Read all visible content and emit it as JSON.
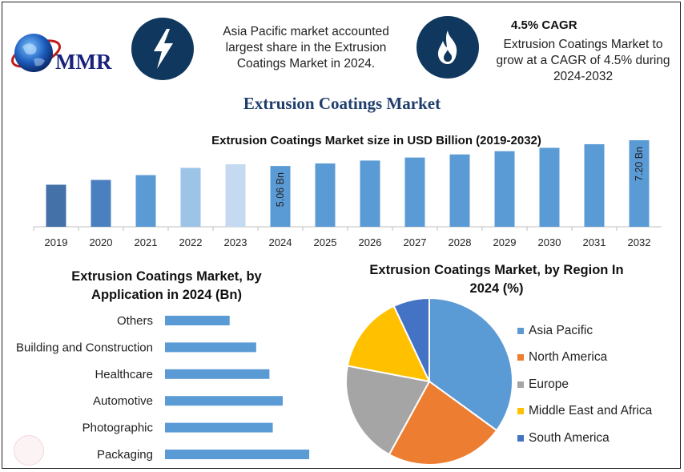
{
  "brand": {
    "name": "MMR"
  },
  "info_left": {
    "text": "Asia Pacific market accounted largest share in the Extrusion Coatings Market in 2024.",
    "icon": "lightning-bolt-icon"
  },
  "info_right": {
    "headline": "4.5% CAGR",
    "text": "Extrusion Coatings Market to grow at a CAGR of 4.5% during 2024-2032",
    "icon": "flame-icon"
  },
  "main_title": "Extrusion Coatings Market",
  "colors": {
    "title": "#1f3e6b",
    "badge": "#10385e",
    "bar": "#5b9bd5",
    "bar_2019": "#4472a8",
    "bar_2020": "#4a80bf",
    "bar_2022": "#9dc3e6",
    "bar_2023": "#c5daf0"
  },
  "chart_data": [
    {
      "type": "bar",
      "title": "Extrusion Coatings Market size in USD Billion (2019-2032)",
      "categories": [
        "2019",
        "2020",
        "2021",
        "2022",
        "2023",
        "2024",
        "2025",
        "2026",
        "2027",
        "2028",
        "2029",
        "2030",
        "2031",
        "2032"
      ],
      "values": [
        3.5,
        3.9,
        4.3,
        4.9,
        5.2,
        5.06,
        5.27,
        5.51,
        5.76,
        6.02,
        6.29,
        6.57,
        6.87,
        7.2
      ],
      "data_labels": [
        {
          "category": "2024",
          "text": "5.06 Bn"
        },
        {
          "category": "2032",
          "text": "7.20 Bn"
        }
      ],
      "ylim": [
        0,
        7.2
      ],
      "grid": false
    },
    {
      "type": "bar",
      "orientation": "horizontal",
      "title": "Extrusion Coatings Market, by Application in 2024 (Bn)",
      "categories": [
        "Others",
        "Building and Construction",
        "Healthcare",
        "Automotive",
        "Photographic",
        "Packaging"
      ],
      "values": [
        0.39,
        0.55,
        0.63,
        0.71,
        0.65,
        0.87
      ],
      "xlim": [
        0,
        1.0
      ]
    },
    {
      "type": "pie",
      "title": "Extrusion Coatings Market, by Region In 2024 (%)",
      "labels": [
        "Asia Pacific",
        "North America",
        "Europe",
        "Middle East and Africa",
        "South America"
      ],
      "values": [
        35,
        23,
        20,
        15,
        7
      ],
      "colors": [
        "#5b9bd5",
        "#ed7d31",
        "#a5a5a5",
        "#ffc000",
        "#4472c4"
      ],
      "legend_position": "right"
    }
  ]
}
